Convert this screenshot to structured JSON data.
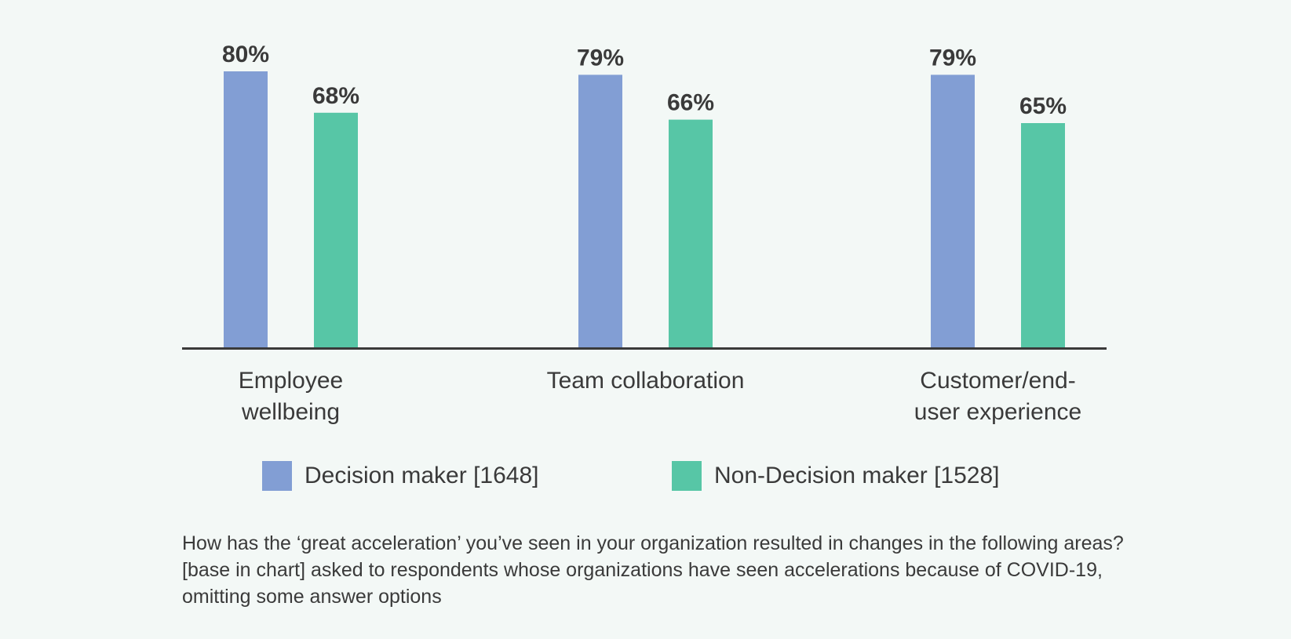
{
  "chart_data": {
    "type": "bar",
    "categories": [
      [
        "Employee",
        "wellbeing"
      ],
      [
        "Team collaboration"
      ],
      [
        "Customer/end-",
        "user experience"
      ]
    ],
    "series": [
      {
        "name": "Decision maker [1648]",
        "color": "#829ed4",
        "values": [
          80,
          79,
          79
        ],
        "labels": [
          "80%",
          "79%",
          "79%"
        ]
      },
      {
        "name": "Non-Decision maker [1528]",
        "color": "#57c6a6",
        "values": [
          68,
          66,
          65
        ],
        "labels": [
          "68%",
          "66%",
          "65%"
        ]
      }
    ],
    "ylim": [
      0,
      80
    ],
    "grid": false,
    "legend_position": "bottom"
  },
  "footnote": "How has the ‘great acceleration’ you’ve seen in your organization resulted in changes in the following areas? [base in chart] asked to respondents whose organizations have seen accelerations because of COVID-19, omitting some answer options"
}
